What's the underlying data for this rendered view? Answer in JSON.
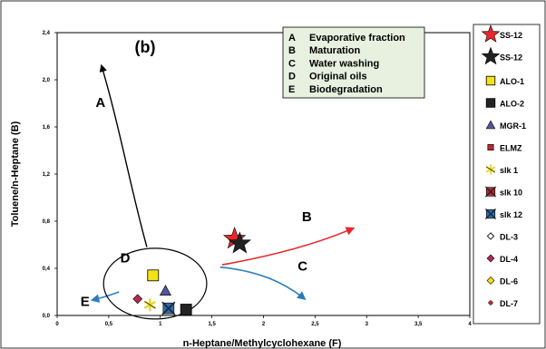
{
  "chart_data": {
    "type": "scatter",
    "panel_label": "(b)",
    "xlabel": "n-Heptane/Methylcyclohexane (F)",
    "ylabel": "Toluene/n-Heptane (B)",
    "xlim": [
      0,
      4
    ],
    "ylim": [
      0,
      2.4
    ],
    "x_ticks": [
      "0",
      "0,5",
      "1",
      "1,5",
      "2",
      "2,5",
      "3",
      "3,5",
      "4"
    ],
    "y_ticks": [
      "0,0",
      "0,4",
      "0,8",
      "1,2",
      "1,6",
      "2,0",
      "2,4"
    ],
    "grid": false,
    "legend_position": "right",
    "process_key": [
      {
        "letter": "A",
        "text": "Evaporative fraction"
      },
      {
        "letter": "B",
        "text": "Maturation"
      },
      {
        "letter": "C",
        "text": "Water washing"
      },
      {
        "letter": "D",
        "text": "Original oils"
      },
      {
        "letter": "E",
        "text": "Biodegradation"
      }
    ],
    "series": [
      {
        "name": "SS-12",
        "marker": "star",
        "color": "#e8262b",
        "x": 1.72,
        "y": 0.65
      },
      {
        "name": "SS-12",
        "marker": "star",
        "color": "#222222",
        "x": 1.77,
        "y": 0.61
      },
      {
        "name": "ALO-1",
        "marker": "square",
        "color": "#f2e316",
        "x": 0.93,
        "y": 0.34
      },
      {
        "name": "ALO-2",
        "marker": "square",
        "color": "#222222",
        "x": 1.25,
        "y": 0.05
      },
      {
        "name": "MGR-1",
        "marker": "triangle",
        "color": "#555599",
        "x": 1.05,
        "y": 0.21
      },
      {
        "name": "ELMZ",
        "marker": "square-small",
        "color": "#b22b33",
        "x": null,
        "y": null
      },
      {
        "name": "slk 1",
        "marker": "asterisk",
        "color": "#e8d21a",
        "x": 0.9,
        "y": 0.09
      },
      {
        "name": "slk 10",
        "marker": "cross-square",
        "color": "#b22b33",
        "x": null,
        "y": null
      },
      {
        "name": "slk 12",
        "marker": "cross-square",
        "color": "#2b6cb0",
        "x": 1.08,
        "y": 0.06
      },
      {
        "name": "DL-3",
        "marker": "diamond-open",
        "color": "#222222",
        "x": null,
        "y": null
      },
      {
        "name": "DL-4",
        "marker": "diamond",
        "color": "#b22b55",
        "x": 0.78,
        "y": 0.14
      },
      {
        "name": "DL-6",
        "marker": "diamond",
        "color": "#f2e316",
        "x": null,
        "y": null
      },
      {
        "name": "DL-7",
        "marker": "diamond-small",
        "color": "#b22b33",
        "x": null,
        "y": null
      }
    ],
    "annotations": {
      "arrow_A": {
        "label": "A",
        "color": "#000000",
        "points": [
          [
            0.87,
            0.58
          ],
          [
            0.72,
            1.05
          ],
          [
            0.6,
            1.62
          ],
          [
            0.43,
            2.12
          ]
        ]
      },
      "arrow_B": {
        "label": "B",
        "color": "#e8262b",
        "points": [
          [
            1.6,
            0.43
          ],
          [
            2.05,
            0.5
          ],
          [
            2.5,
            0.6
          ],
          [
            2.87,
            0.74
          ]
        ]
      },
      "arrow_C": {
        "label": "C",
        "color": "#2b7bc0",
        "points": [
          [
            1.58,
            0.41
          ],
          [
            1.95,
            0.38
          ],
          [
            2.2,
            0.28
          ],
          [
            2.4,
            0.14
          ]
        ]
      },
      "arrow_E": {
        "label": "E",
        "color": "#2b7bc0",
        "points": [
          [
            0.6,
            0.2
          ],
          [
            0.48,
            0.16
          ],
          [
            0.34,
            0.13
          ]
        ]
      },
      "ellipse_D": {
        "label": "D",
        "cx": 0.95,
        "cy": 0.27,
        "rx": 0.5,
        "ry": 0.3
      }
    }
  }
}
